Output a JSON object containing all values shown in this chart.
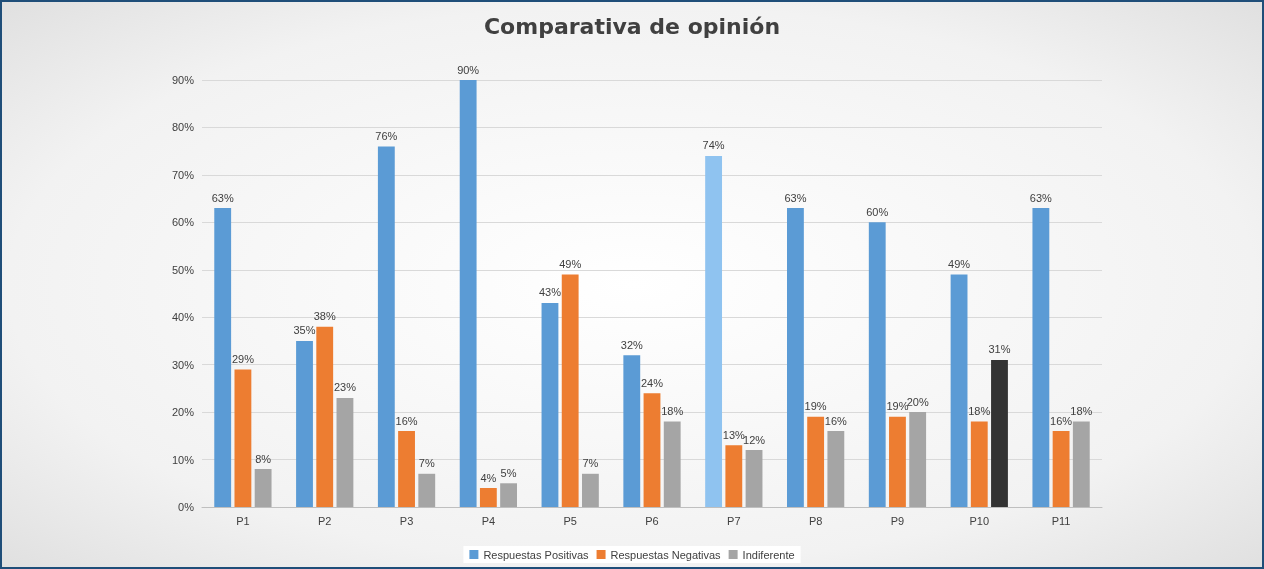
{
  "chart_data": {
    "type": "bar",
    "title": "Comparativa de opinión",
    "categories": [
      "P1",
      "P2",
      "P3",
      "P4",
      "P5",
      "P6",
      "P7",
      "P8",
      "P9",
      "P10",
      "P11"
    ],
    "series": [
      {
        "name": "Respuestas Positivas",
        "color": "#5b9bd5",
        "colors": [
          "#5b9bd5",
          "#5b9bd5",
          "#5b9bd5",
          "#5b9bd5",
          "#5b9bd5",
          "#5b9bd5",
          "#8fc3f0",
          "#5b9bd5",
          "#5b9bd5",
          "#5b9bd5",
          "#5b9bd5"
        ],
        "values": [
          63,
          35,
          76,
          90,
          43,
          32,
          74,
          63,
          60,
          49,
          63
        ],
        "value_labels": [
          "63%",
          "35%",
          "76%",
          "90%",
          "43%",
          "32%",
          "74%",
          "63%",
          "60%",
          "49%",
          "63%"
        ]
      },
      {
        "name": "Respuestas Negativas",
        "color": "#ed7d31",
        "values": [
          29,
          38,
          16,
          4,
          49,
          24,
          13,
          19,
          19,
          18,
          16
        ],
        "value_labels": [
          "29%",
          "38%",
          "16%",
          "4%",
          "49%",
          "24%",
          "13%",
          "19%",
          "19%",
          "18%",
          "16%"
        ]
      },
      {
        "name": "Indiferente",
        "color": "#a5a5a5",
        "colors": [
          "#a5a5a5",
          "#a5a5a5",
          "#a5a5a5",
          "#a5a5a5",
          "#a5a5a5",
          "#a5a5a5",
          "#a5a5a5",
          "#a5a5a5",
          "#a5a5a5",
          "#333333",
          "#a5a5a5"
        ],
        "values": [
          8,
          23,
          7,
          5,
          7,
          18,
          12,
          16,
          20,
          31,
          18
        ],
        "value_labels": [
          "8%",
          "23%",
          "7%",
          "5%",
          "7%",
          "18%",
          "12%",
          "16%",
          "20%",
          "31%",
          "18%"
        ]
      }
    ],
    "ylim": [
      0,
      90
    ],
    "yticks": [
      {
        "value": 0,
        "label": "0%"
      },
      {
        "value": 10,
        "label": "10%"
      },
      {
        "value": 20,
        "label": "20%"
      },
      {
        "value": 30,
        "label": "30%"
      },
      {
        "value": 40,
        "label": "40%"
      },
      {
        "value": 50,
        "label": "50%"
      },
      {
        "value": 60,
        "label": "60%"
      },
      {
        "value": 70,
        "label": "70%"
      },
      {
        "value": 80,
        "label": "80%"
      },
      {
        "value": 90,
        "label": "90%"
      }
    ],
    "grid": "y",
    "legend": "bottom"
  }
}
